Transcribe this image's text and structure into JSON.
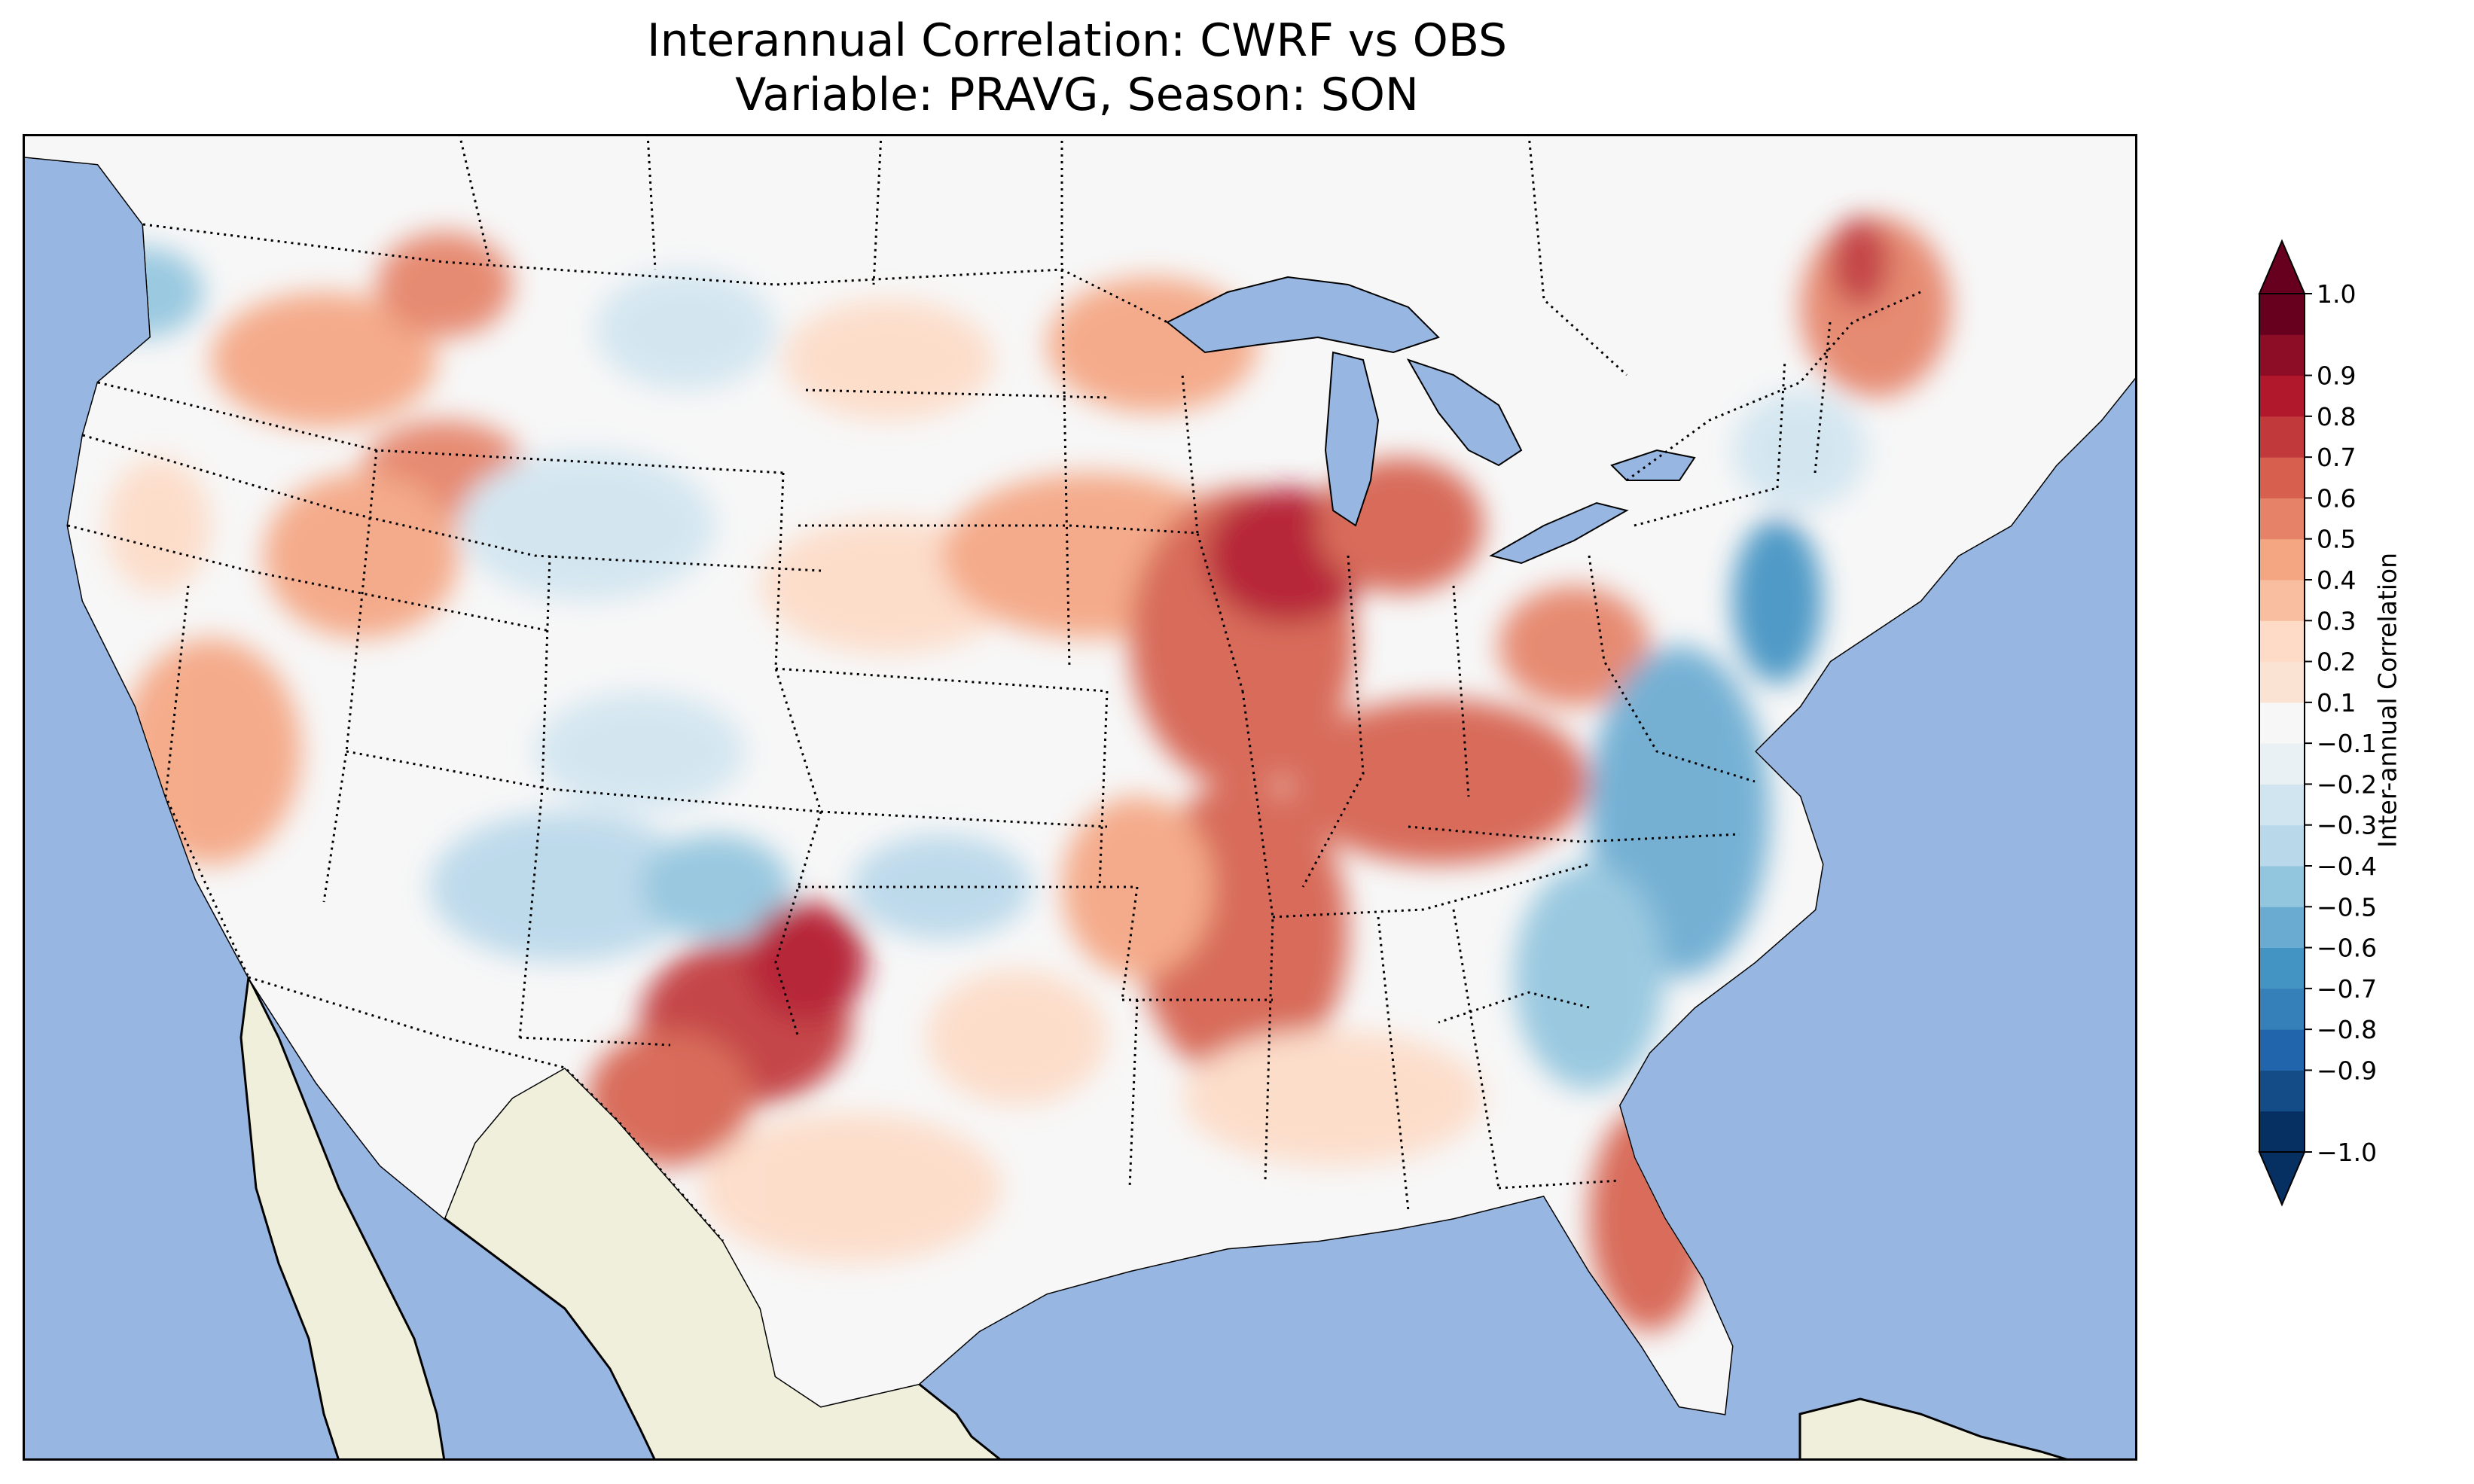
{
  "title": {
    "line1": "Interannual Correlation: CWRF vs OBS",
    "line2": "Variable: PRAVG, Season: SON"
  },
  "map": {
    "region": "Contiguous United States",
    "projection": "lambert-conformal",
    "features": [
      "ocean",
      "land",
      "lakes",
      "coastlines",
      "state-borders",
      "country-borders"
    ],
    "colors": {
      "ocean": "#97b6e1",
      "land": "#efefdb",
      "border": "#000000"
    },
    "field": "interannual correlation (SON PRAVG)"
  },
  "colorbar": {
    "label": "Inter-annual Correlation",
    "min": -1.0,
    "max": 1.0,
    "extend": "both",
    "ticks": [
      "−1.0",
      "−0.9",
      "−0.8",
      "−0.7",
      "−0.6",
      "−0.5",
      "−0.4",
      "−0.3",
      "−0.2",
      "−0.1",
      "0.1",
      "0.2",
      "0.3",
      "0.4",
      "0.5",
      "0.6",
      "0.7",
      "0.8",
      "0.9",
      "1.0"
    ],
    "colors": [
      "#053061",
      "#134c87",
      "#2166ac",
      "#3580b9",
      "#4393c3",
      "#6aabd1",
      "#92c5de",
      "#b9d8ea",
      "#d1e5f0",
      "#eaf1f5",
      "#f7f7f7",
      "#fbe3d4",
      "#fddbc7",
      "#f9bd9f",
      "#f4a582",
      "#e58267",
      "#d6604d",
      "#c1393b",
      "#b2182b",
      "#8c0d25",
      "#67001f"
    ]
  }
}
